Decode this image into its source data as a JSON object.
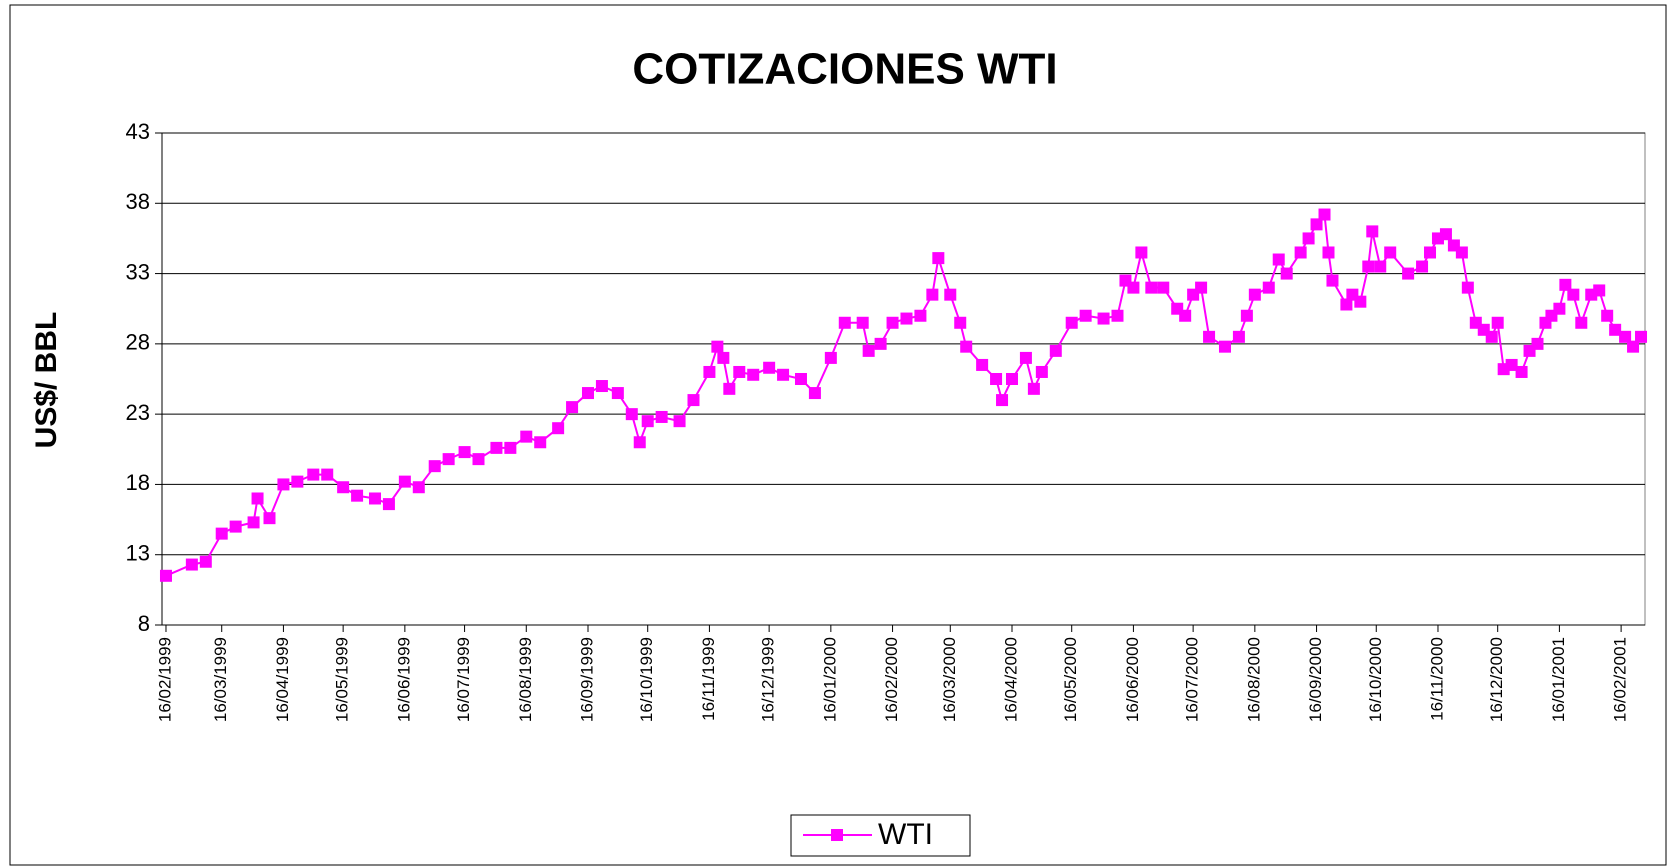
{
  "chart_data": {
    "type": "line",
    "title": "COTIZACIONES WTI",
    "y_label": "US$/ BBL",
    "x": [
      "16/02/1999",
      "01/03/1999",
      "08/03/1999",
      "16/03/1999",
      "23/03/1999",
      "01/04/1999",
      "03/04/1999",
      "09/04/1999",
      "16/04/1999",
      "23/04/1999",
      "01/05/1999",
      "08/05/1999",
      "16/05/1999",
      "23/05/1999",
      "01/06/1999",
      "08/06/1999",
      "16/06/1999",
      "23/06/1999",
      "01/07/1999",
      "08/07/1999",
      "16/07/1999",
      "23/07/1999",
      "01/08/1999",
      "08/08/1999",
      "16/08/1999",
      "23/08/1999",
      "01/09/1999",
      "08/09/1999",
      "16/09/1999",
      "23/09/1999",
      "01/10/1999",
      "08/10/1999",
      "12/10/1999",
      "16/10/1999",
      "23/10/1999",
      "01/11/1999",
      "08/11/1999",
      "16/11/1999",
      "20/11/1999",
      "23/11/1999",
      "26/11/1999",
      "01/12/1999",
      "08/12/1999",
      "16/12/1999",
      "23/12/1999",
      "01/01/2000",
      "08/01/2000",
      "16/01/2000",
      "23/01/2000",
      "01/02/2000",
      "04/02/2000",
      "10/02/2000",
      "16/02/2000",
      "23/02/2000",
      "01/03/2000",
      "07/03/2000",
      "10/03/2000",
      "16/03/2000",
      "21/03/2000",
      "24/03/2000",
      "01/04/2000",
      "08/04/2000",
      "11/04/2000",
      "16/04/2000",
      "23/04/2000",
      "27/04/2000",
      "01/05/2000",
      "08/05/2000",
      "16/05/2000",
      "23/05/2000",
      "01/06/2000",
      "08/06/2000",
      "12/06/2000",
      "16/06/2000",
      "20/06/2000",
      "25/06/2000",
      "01/07/2000",
      "08/07/2000",
      "12/07/2000",
      "16/07/2000",
      "20/07/2000",
      "24/07/2000",
      "01/08/2000",
      "08/08/2000",
      "12/08/2000",
      "16/08/2000",
      "23/08/2000",
      "28/08/2000",
      "01/09/2000",
      "08/09/2000",
      "12/09/2000",
      "16/09/2000",
      "20/09/2000",
      "22/09/2000",
      "24/09/2000",
      "01/10/2000",
      "04/10/2000",
      "08/10/2000",
      "12/10/2000",
      "14/10/2000",
      "18/10/2000",
      "23/10/2000",
      "01/11/2000",
      "08/11/2000",
      "12/11/2000",
      "16/11/2000",
      "20/11/2000",
      "24/11/2000",
      "28/11/2000",
      "01/12/2000",
      "05/12/2000",
      "09/12/2000",
      "13/12/2000",
      "16/12/2000",
      "19/12/2000",
      "23/12/2000",
      "28/12/2000",
      "01/01/2001",
      "05/01/2001",
      "09/01/2001",
      "12/01/2001",
      "16/01/2001",
      "19/01/2001",
      "23/01/2001",
      "27/01/2001",
      "01/02/2001",
      "05/02/2001",
      "09/02/2001",
      "13/02/2001",
      "18/02/2001",
      "22/02/2001",
      "26/02/2001"
    ],
    "series": [
      {
        "name": "WTI",
        "color": "#ff00ff",
        "values": [
          11.5,
          12.3,
          12.5,
          14.5,
          15,
          15.3,
          17,
          15.6,
          18,
          18.2,
          18.7,
          18.7,
          17.8,
          17.2,
          17,
          16.6,
          18.2,
          17.8,
          19.3,
          19.8,
          20.3,
          19.8,
          20.6,
          20.6,
          21.4,
          21,
          22,
          23.5,
          24.5,
          25,
          24.5,
          23,
          21,
          22.5,
          22.8,
          22.5,
          24,
          26,
          27.8,
          27,
          24.8,
          26,
          25.8,
          26.3,
          25.8,
          25.5,
          24.5,
          27,
          29.5,
          29.5,
          27.5,
          28,
          29.5,
          29.8,
          30,
          31.5,
          34.1,
          31.5,
          29.5,
          27.8,
          26.5,
          25.5,
          24,
          25.5,
          27,
          24.8,
          26,
          27.5,
          29.5,
          30,
          29.8,
          30,
          32.5,
          32,
          34.5,
          32,
          32,
          30.5,
          30,
          31.5,
          32,
          28.5,
          27.8,
          28.5,
          30,
          31.5,
          32,
          34,
          33,
          34.5,
          35.5,
          36.5,
          37.2,
          34.5,
          32.5,
          30.8,
          31.5,
          31,
          33.5,
          36,
          33.5,
          34.5,
          33,
          33.5,
          34.5,
          35.5,
          35.8,
          35,
          34.5,
          32,
          29.5,
          29,
          28.5,
          29.5,
          26.2,
          26.5,
          26,
          27.5,
          28,
          29.5,
          30,
          30.5,
          32.2,
          31.5,
          29.5,
          31.5,
          31.8,
          30,
          29,
          28.5,
          27.8,
          28.5
        ]
      }
    ],
    "xlim": [
      "14/02/1999",
      "28/02/2001"
    ],
    "xticks": [
      "16/02/1999",
      "16/03/1999",
      "16/04/1999",
      "16/05/1999",
      "16/06/1999",
      "16/07/1999",
      "16/08/1999",
      "16/09/1999",
      "16/10/1999",
      "16/11/1999",
      "16/12/1999",
      "16/01/2000",
      "16/02/2000",
      "16/03/2000",
      "16/04/2000",
      "16/05/2000",
      "16/06/2000",
      "16/07/2000",
      "16/08/2000",
      "16/09/2000",
      "16/10/2000",
      "16/11/2000",
      "16/12/2000",
      "16/01/2001",
      "16/02/2001"
    ],
    "ylim": [
      8,
      43
    ],
    "yticks": [
      8,
      13,
      18,
      23,
      28,
      33,
      38,
      43
    ],
    "grid": true,
    "legend": "bottom"
  }
}
